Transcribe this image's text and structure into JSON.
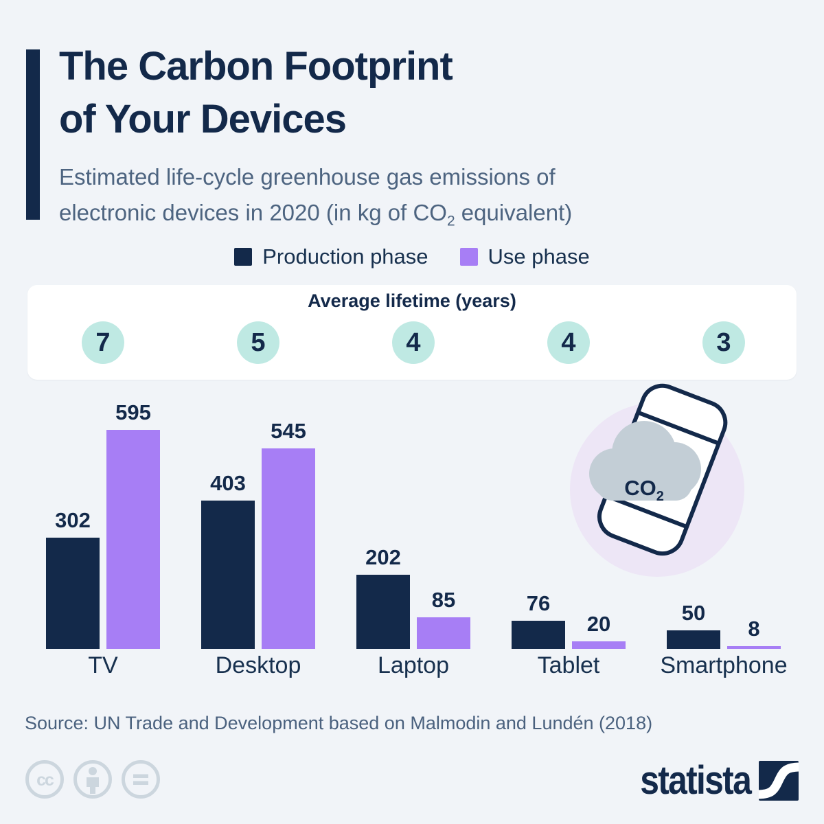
{
  "header": {
    "title_line1": "The Carbon Footprint",
    "title_line2": "of Your Devices",
    "subtitle_line1": "Estimated life-cycle greenhouse gas emissions of",
    "subtitle_line2_pre": "electronic devices in 2020 (in kg of CO",
    "subtitle_line2_sub": "2",
    "subtitle_line2_post": " equivalent)"
  },
  "legend": [
    {
      "label": "Production phase",
      "color": "#13294a"
    },
    {
      "label": "Use phase",
      "color": "#a77ef5"
    }
  ],
  "lifetime_band": {
    "title": "Average lifetime (years)",
    "values": [
      7,
      5,
      4,
      4,
      3
    ],
    "circle_color": "#bfe9e3"
  },
  "chart_data": {
    "type": "bar",
    "title": "The Carbon Footprint of Your Devices",
    "subtitle": "Estimated life-cycle greenhouse gas emissions of electronic devices in 2020 (in kg of CO2 equivalent)",
    "categories": [
      "TV",
      "Desktop",
      "Laptop",
      "Tablet",
      "Smartphone"
    ],
    "series": [
      {
        "name": "Production phase",
        "color": "#13294a",
        "values": [
          302,
          403,
          202,
          76,
          50
        ]
      },
      {
        "name": "Use phase",
        "color": "#a77ef5",
        "values": [
          595,
          545,
          85,
          20,
          8
        ]
      }
    ],
    "average_lifetime_years": [
      7,
      5,
      4,
      4,
      3
    ],
    "unit": "kg CO2 equivalent",
    "ylim": [
      0,
      595
    ],
    "grid": false,
    "legend_position": "top",
    "value_labels": true
  },
  "illustration": {
    "co2_pre": "CO",
    "co2_sub": "2"
  },
  "footer": {
    "source": "Source: UN Trade and Development based on Malmodin and Lundén (2018)",
    "logo_text": "statista"
  },
  "colors": {
    "background": "#f1f4f8",
    "navy": "#13294a",
    "purple": "#a77ef5",
    "teal_circle": "#bfe9e3",
    "slate_text": "#4d6480",
    "band_white": "#ffffff",
    "lavender_circle": "#ede6f6",
    "cloud_gray": "#c3ced6",
    "cc_gray": "#ccd6de"
  }
}
